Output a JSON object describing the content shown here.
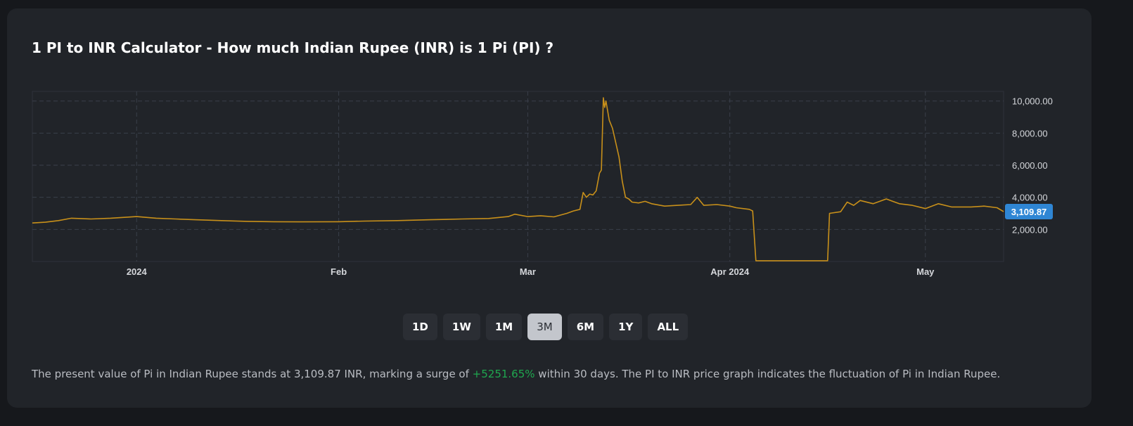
{
  "title": "1 PI to INR Calculator - How much Indian Rupee (INR) is 1 Pi (PI) ?",
  "ranges": [
    {
      "label": "1D",
      "active": false
    },
    {
      "label": "1W",
      "active": false
    },
    {
      "label": "1M",
      "active": false
    },
    {
      "label": "3M",
      "active": true
    },
    {
      "label": "6M",
      "active": false
    },
    {
      "label": "1Y",
      "active": false
    },
    {
      "label": "ALL",
      "active": false
    }
  ],
  "description": {
    "before": "The present value of Pi in Indian Rupee stands at 3,109.87 INR, marking a surge of ",
    "change": "+5251.65%",
    "after": " within 30 days. The PI to INR price graph indicates the fluctuation of Pi in Indian Rupee."
  },
  "colors": {
    "line": "#c8901a",
    "current_label": "#2f86d4",
    "positive": "#1fa84f"
  },
  "chart_data": {
    "type": "line",
    "title": "",
    "xlabel": "",
    "ylabel": "",
    "xlim": [
      "2023-12-16",
      "2024-05-13"
    ],
    "ylim": [
      0,
      10600
    ],
    "grid": true,
    "x_ticks": [
      {
        "date": "2024-01-01",
        "label": "2024"
      },
      {
        "date": "2024-02-01",
        "label": "Feb"
      },
      {
        "date": "2024-03-01",
        "label": "Mar"
      },
      {
        "date": "2024-04-01",
        "label": "Apr 2024"
      },
      {
        "date": "2024-05-01",
        "label": "May"
      }
    ],
    "y_ticks": [
      {
        "value": 2000,
        "label": "2,000.00"
      },
      {
        "value": 4000,
        "label": "4,000.00"
      },
      {
        "value": 6000,
        "label": "6,000.00"
      },
      {
        "value": 8000,
        "label": "8,000.00"
      },
      {
        "value": 10000,
        "label": "10,000.00"
      }
    ],
    "current_value_label": "3,109.87",
    "current_value": 3109.87,
    "points": [
      [
        "2023-12-16",
        2400
      ],
      [
        "2023-12-18",
        2450
      ],
      [
        "2023-12-20",
        2550
      ],
      [
        "2023-12-22",
        2700
      ],
      [
        "2023-12-25",
        2650
      ],
      [
        "2023-12-28",
        2700
      ],
      [
        "2024-01-01",
        2800
      ],
      [
        "2024-01-04",
        2700
      ],
      [
        "2024-01-07",
        2650
      ],
      [
        "2024-01-10",
        2600
      ],
      [
        "2024-01-14",
        2550
      ],
      [
        "2024-01-18",
        2500
      ],
      [
        "2024-01-22",
        2480
      ],
      [
        "2024-01-26",
        2470
      ],
      [
        "2024-02-01",
        2480
      ],
      [
        "2024-02-05",
        2520
      ],
      [
        "2024-02-10",
        2550
      ],
      [
        "2024-02-15",
        2600
      ],
      [
        "2024-02-20",
        2650
      ],
      [
        "2024-02-24",
        2680
      ],
      [
        "2024-02-27",
        2800
      ],
      [
        "2024-02-28",
        2950
      ],
      [
        "2024-03-01",
        2800
      ],
      [
        "2024-03-03",
        2850
      ],
      [
        "2024-03-05",
        2780
      ],
      [
        "2024-03-07",
        3000
      ],
      [
        "2024-03-08",
        3150
      ],
      [
        "2024-03-09",
        3250
      ],
      [
        "2024-03-09.5",
        4300
      ],
      [
        "2024-03-10",
        4000
      ],
      [
        "2024-03-10.5",
        4200
      ],
      [
        "2024-03-11",
        4150
      ],
      [
        "2024-03-11.5",
        4400
      ],
      [
        "2024-03-12",
        5500
      ],
      [
        "2024-03-12.3",
        5700
      ],
      [
        "2024-03-12.6",
        10200
      ],
      [
        "2024-03-12.8",
        9600
      ],
      [
        "2024-03-13",
        10000
      ],
      [
        "2024-03-13.5",
        8800
      ],
      [
        "2024-03-14",
        8300
      ],
      [
        "2024-03-15",
        6500
      ],
      [
        "2024-03-15.5",
        5000
      ],
      [
        "2024-03-16",
        4000
      ],
      [
        "2024-03-16.5",
        3900
      ],
      [
        "2024-03-17",
        3700
      ],
      [
        "2024-03-18",
        3650
      ],
      [
        "2024-03-19",
        3750
      ],
      [
        "2024-03-20",
        3600
      ],
      [
        "2024-03-22",
        3450
      ],
      [
        "2024-03-24",
        3500
      ],
      [
        "2024-03-26",
        3550
      ],
      [
        "2024-03-27",
        4000
      ],
      [
        "2024-03-28",
        3500
      ],
      [
        "2024-03-30",
        3550
      ],
      [
        "2024-04-01",
        3450
      ],
      [
        "2024-04-02",
        3350
      ],
      [
        "2024-04-04",
        3250
      ],
      [
        "2024-04-04.5",
        3150
      ],
      [
        "2024-04-05",
        50
      ],
      [
        "2024-04-16",
        50
      ],
      [
        "2024-04-16.3",
        3000
      ],
      [
        "2024-04-18",
        3100
      ],
      [
        "2024-04-19",
        3700
      ],
      [
        "2024-04-20",
        3500
      ],
      [
        "2024-04-21",
        3800
      ],
      [
        "2024-04-23",
        3600
      ],
      [
        "2024-04-25",
        3900
      ],
      [
        "2024-04-27",
        3600
      ],
      [
        "2024-04-29",
        3500
      ],
      [
        "2024-05-01",
        3300
      ],
      [
        "2024-05-03",
        3600
      ],
      [
        "2024-05-05",
        3400
      ],
      [
        "2024-05-08",
        3400
      ],
      [
        "2024-05-10",
        3450
      ],
      [
        "2024-05-12",
        3350
      ],
      [
        "2024-05-13",
        3109.87
      ]
    ]
  }
}
